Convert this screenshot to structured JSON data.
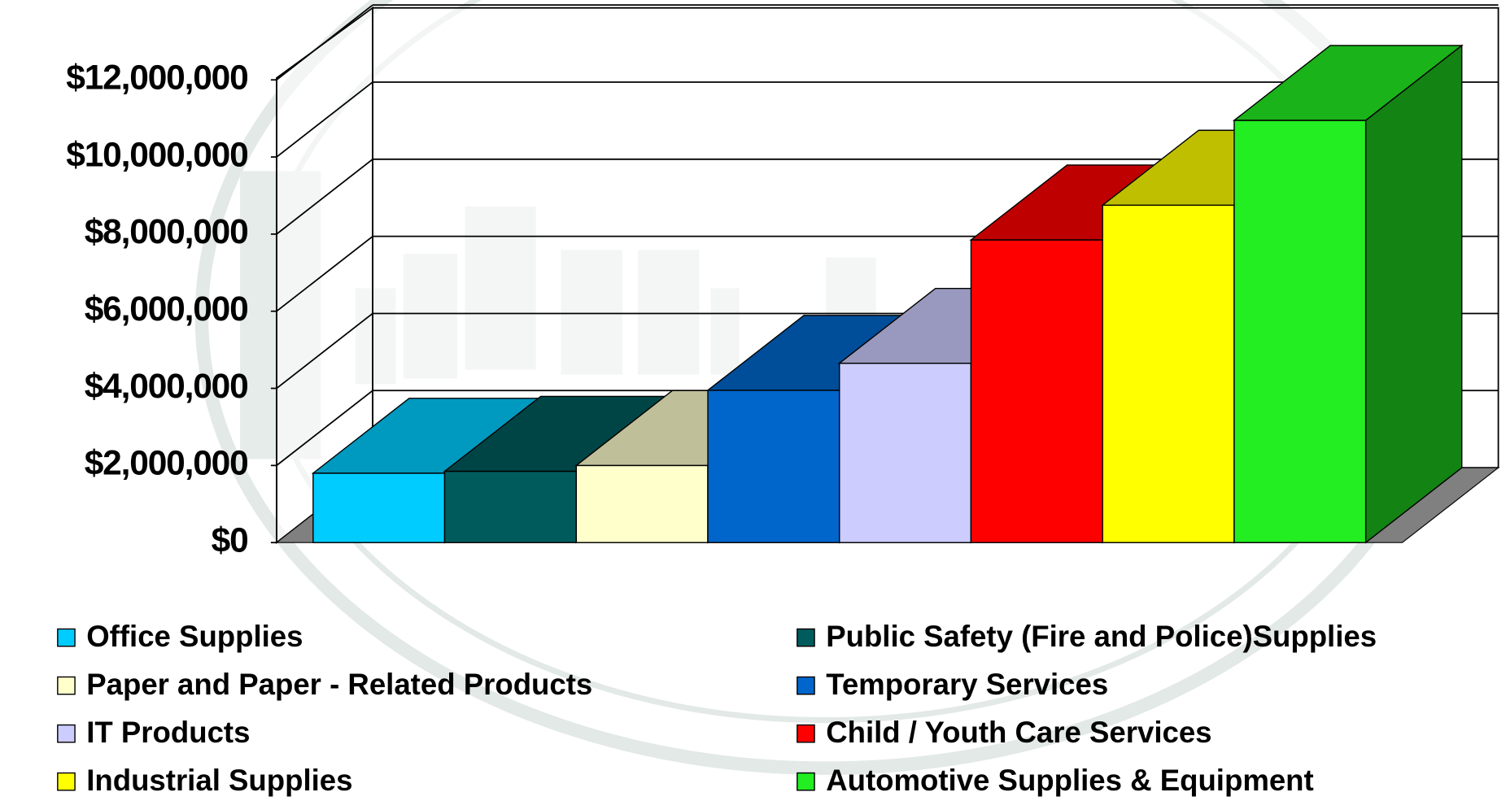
{
  "chart_data": {
    "type": "bar3d",
    "ylim": [
      0,
      12000000
    ],
    "yticks": [
      {
        "value": 0,
        "label": "$0"
      },
      {
        "value": 2000000,
        "label": "$2,000,000"
      },
      {
        "value": 4000000,
        "label": "$4,000,000"
      },
      {
        "value": 6000000,
        "label": "$6,000,000"
      },
      {
        "value": 8000000,
        "label": "$8,000,000"
      },
      {
        "value": 10000000,
        "label": "$10,000,000"
      },
      {
        "value": 12000000,
        "label": "$12,000,000"
      }
    ],
    "grid": true,
    "legend": "bottom",
    "series": [
      {
        "name": "Office Supplies",
        "color": "#00ccff",
        "values": [
          1800000
        ]
      },
      {
        "name": "Public Safety (Fire and Police)Supplies",
        "color": "#005c5c",
        "values": [
          1850000
        ]
      },
      {
        "name": "Paper and Paper - Related Products",
        "color": "#ffffcc",
        "values": [
          2000000
        ]
      },
      {
        "name": "Temporary Services",
        "color": "#0066cc",
        "values": [
          3950000
        ]
      },
      {
        "name": "IT Products",
        "color": "#ccccff",
        "values": [
          4650000
        ]
      },
      {
        "name": "Child / Youth Care Services",
        "color": "#ff0000",
        "values": [
          7850000
        ]
      },
      {
        "name": "Industrial Supplies",
        "color": "#ffff00",
        "values": [
          8750000
        ]
      },
      {
        "name": "Automotive Supplies & Equipment",
        "color": "#22ee22",
        "values": [
          10950000
        ]
      }
    ]
  }
}
